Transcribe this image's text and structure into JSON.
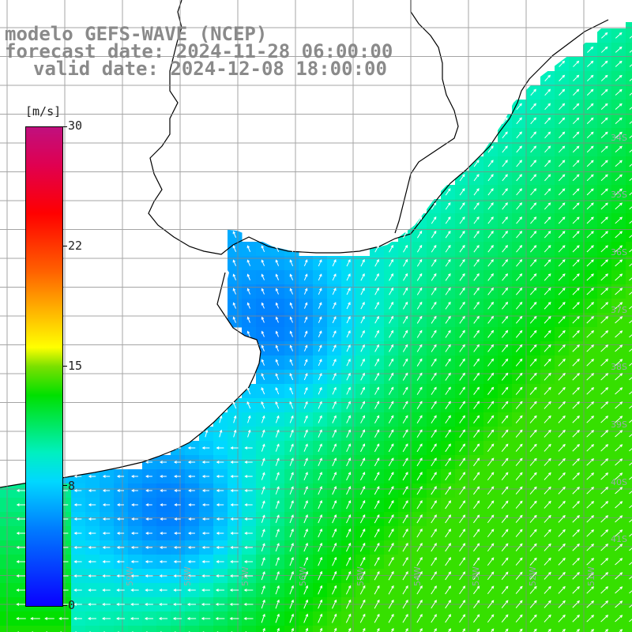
{
  "title": {
    "line1": "modelo GEFS-WAVE (NCEP)",
    "line2": "forecast date: 2024-11-28 06:00:00",
    "line3": "valid date: 2024-12-08 18:00:00"
  },
  "colorbar": {
    "unit": "[m/s]",
    "min": 0,
    "max": 30,
    "ticks": [
      "30",
      "22",
      "15",
      "8",
      "0"
    ],
    "tick_values": [
      30,
      22,
      15,
      8,
      0
    ]
  },
  "lat_labels": [
    "34S",
    "35S",
    "36S",
    "37S",
    "38S",
    "39S",
    "40S",
    "41S"
  ],
  "lon_labels": [
    "59W",
    "58W",
    "57W",
    "56W",
    "55W",
    "54W",
    "53W",
    "52W",
    "51W"
  ],
  "colors": {
    "land": "#ffffff",
    "coast": "#000000",
    "grid": "#888888",
    "arrow": "#ffffff",
    "title": "#8a8a8a"
  }
}
